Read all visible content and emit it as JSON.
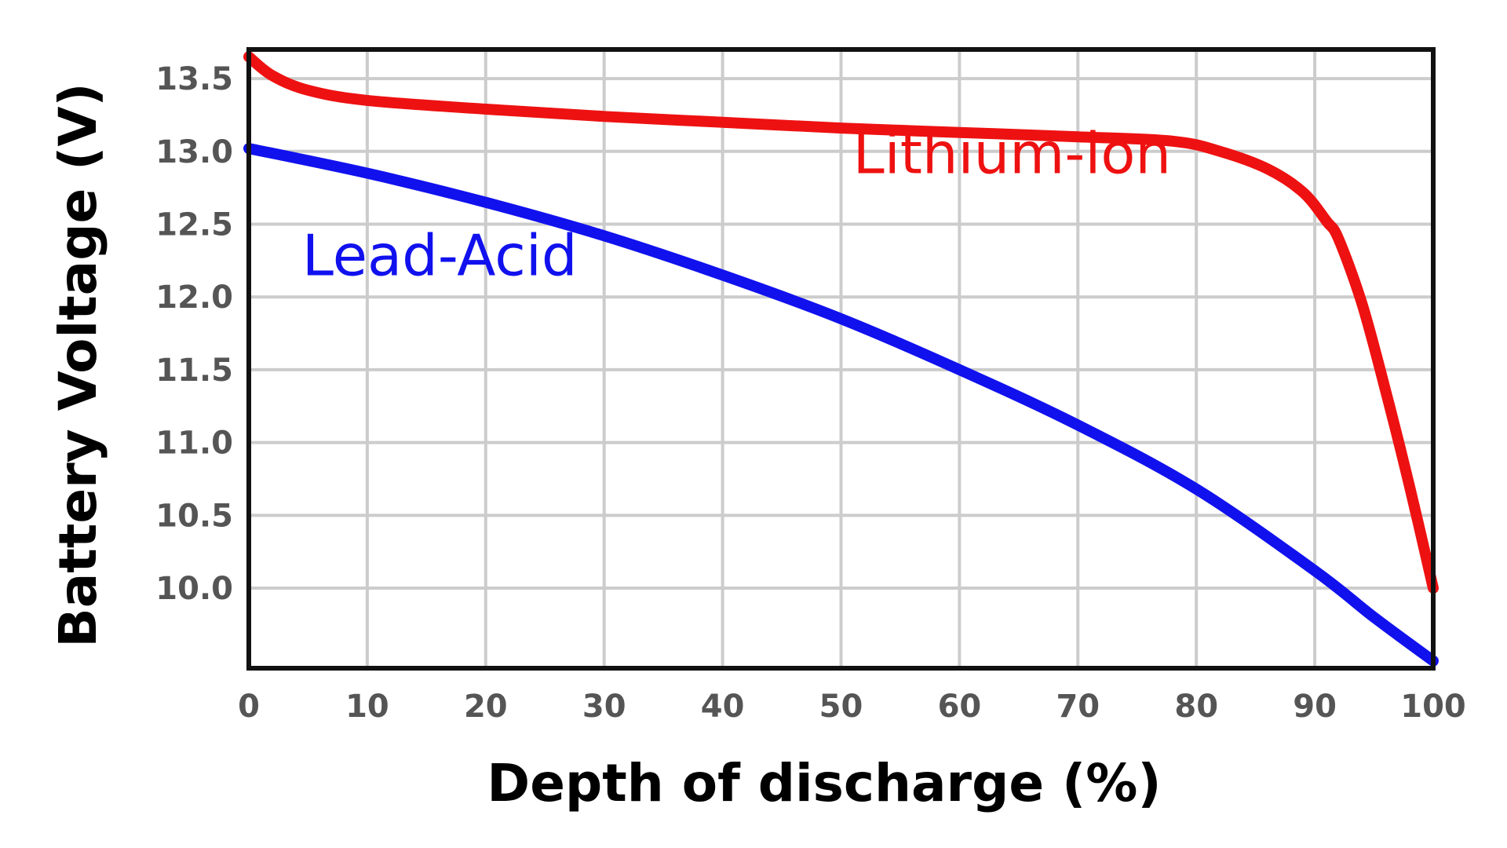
{
  "chart_data": {
    "type": "line",
    "xlabel": "Depth of discharge (%)",
    "ylabel": "Battery Voltage (V)",
    "xlim": [
      0,
      100
    ],
    "ylim": [
      9.45,
      13.7
    ],
    "x_ticks": [
      0,
      10,
      20,
      30,
      40,
      50,
      60,
      70,
      80,
      90,
      100
    ],
    "y_ticks": [
      10.0,
      10.5,
      11.0,
      11.5,
      12.0,
      12.5,
      13.0,
      13.5
    ],
    "y_tick_labels": [
      "10.0",
      "10.5",
      "11.0",
      "11.5",
      "12.0",
      "12.5",
      "13.0",
      "13.5"
    ],
    "x_tick_labels": [
      "0",
      "10",
      "20",
      "30",
      "40",
      "50",
      "60",
      "70",
      "80",
      "90",
      "100"
    ],
    "grid": true,
    "legend": "inline labels",
    "highlight_gridline_y": 12.0,
    "series": [
      {
        "name": "Lithium-ion",
        "color": "#ee1111",
        "label_anchor": [
          51,
          12.85
        ],
        "points": [
          [
            0,
            13.65
          ],
          [
            2,
            13.52
          ],
          [
            5,
            13.42
          ],
          [
            10,
            13.35
          ],
          [
            20,
            13.29
          ],
          [
            30,
            13.24
          ],
          [
            40,
            13.2
          ],
          [
            50,
            13.16
          ],
          [
            60,
            13.13
          ],
          [
            70,
            13.1
          ],
          [
            78,
            13.07
          ],
          [
            82,
            13.0
          ],
          [
            86,
            12.88
          ],
          [
            89,
            12.72
          ],
          [
            91,
            12.52
          ],
          [
            92,
            12.4
          ],
          [
            94,
            11.95
          ],
          [
            96,
            11.35
          ],
          [
            98,
            10.7
          ],
          [
            100,
            10.0
          ]
        ]
      },
      {
        "name": "Lead-Acid",
        "color": "#1111ee",
        "label_anchor": [
          4.5,
          12.15
        ],
        "points": [
          [
            0,
            13.02
          ],
          [
            10,
            12.85
          ],
          [
            20,
            12.65
          ],
          [
            30,
            12.42
          ],
          [
            40,
            12.15
          ],
          [
            50,
            11.85
          ],
          [
            60,
            11.5
          ],
          [
            70,
            11.12
          ],
          [
            80,
            10.68
          ],
          [
            90,
            10.12
          ],
          [
            95,
            9.8
          ],
          [
            100,
            9.5
          ]
        ]
      }
    ]
  }
}
